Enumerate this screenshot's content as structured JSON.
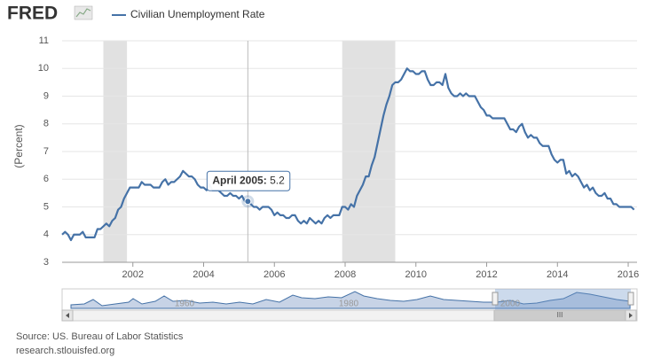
{
  "header": {
    "logo": "FRED"
  },
  "chart_data": {
    "type": "line",
    "y_label": "(Percent)",
    "x": [
      "2000-01",
      "2000-02",
      "2000-03",
      "2000-04",
      "2000-05",
      "2000-06",
      "2000-07",
      "2000-08",
      "2000-09",
      "2000-10",
      "2000-11",
      "2000-12",
      "2001-01",
      "2001-02",
      "2001-03",
      "2001-04",
      "2001-05",
      "2001-06",
      "2001-07",
      "2001-08",
      "2001-09",
      "2001-10",
      "2001-11",
      "2001-12",
      "2002-01",
      "2002-02",
      "2002-03",
      "2002-04",
      "2002-05",
      "2002-06",
      "2002-07",
      "2002-08",
      "2002-09",
      "2002-10",
      "2002-11",
      "2002-12",
      "2003-01",
      "2003-02",
      "2003-03",
      "2003-04",
      "2003-05",
      "2003-06",
      "2003-07",
      "2003-08",
      "2003-09",
      "2003-10",
      "2003-11",
      "2003-12",
      "2004-01",
      "2004-02",
      "2004-03",
      "2004-04",
      "2004-05",
      "2004-06",
      "2004-07",
      "2004-08",
      "2004-09",
      "2004-10",
      "2004-11",
      "2004-12",
      "2005-01",
      "2005-02",
      "2005-03",
      "2005-04",
      "2005-05",
      "2005-06",
      "2005-07",
      "2005-08",
      "2005-09",
      "2005-10",
      "2005-11",
      "2005-12",
      "2006-01",
      "2006-02",
      "2006-03",
      "2006-04",
      "2006-05",
      "2006-06",
      "2006-07",
      "2006-08",
      "2006-09",
      "2006-10",
      "2006-11",
      "2006-12",
      "2007-01",
      "2007-02",
      "2007-03",
      "2007-04",
      "2007-05",
      "2007-06",
      "2007-07",
      "2007-08",
      "2007-09",
      "2007-10",
      "2007-11",
      "2007-12",
      "2008-01",
      "2008-02",
      "2008-03",
      "2008-04",
      "2008-05",
      "2008-06",
      "2008-07",
      "2008-08",
      "2008-09",
      "2008-10",
      "2008-11",
      "2008-12",
      "2009-01",
      "2009-02",
      "2009-03",
      "2009-04",
      "2009-05",
      "2009-06",
      "2009-07",
      "2009-08",
      "2009-09",
      "2009-10",
      "2009-11",
      "2009-12",
      "2010-01",
      "2010-02",
      "2010-03",
      "2010-04",
      "2010-05",
      "2010-06",
      "2010-07",
      "2010-08",
      "2010-09",
      "2010-10",
      "2010-11",
      "2010-12",
      "2011-01",
      "2011-02",
      "2011-03",
      "2011-04",
      "2011-05",
      "2011-06",
      "2011-07",
      "2011-08",
      "2011-09",
      "2011-10",
      "2011-11",
      "2011-12",
      "2012-01",
      "2012-02",
      "2012-03",
      "2012-04",
      "2012-05",
      "2012-06",
      "2012-07",
      "2012-08",
      "2012-09",
      "2012-10",
      "2012-11",
      "2012-12",
      "2013-01",
      "2013-02",
      "2013-03",
      "2013-04",
      "2013-05",
      "2013-06",
      "2013-07",
      "2013-08",
      "2013-09",
      "2013-10",
      "2013-11",
      "2013-12",
      "2014-01",
      "2014-02",
      "2014-03",
      "2014-04",
      "2014-05",
      "2014-06",
      "2014-07",
      "2014-08",
      "2014-09",
      "2014-10",
      "2014-11",
      "2014-12",
      "2015-01",
      "2015-02",
      "2015-03",
      "2015-04",
      "2015-05",
      "2015-06",
      "2015-07",
      "2015-08",
      "2015-09",
      "2015-10",
      "2015-11",
      "2015-12",
      "2016-01",
      "2016-02",
      "2016-03"
    ],
    "series": [
      {
        "name": "Civilian Unemployment Rate",
        "color": "#4572a7",
        "values": [
          4.0,
          4.1,
          4.0,
          3.8,
          4.0,
          4.0,
          4.0,
          4.1,
          3.9,
          3.9,
          3.9,
          3.9,
          4.2,
          4.2,
          4.3,
          4.4,
          4.3,
          4.5,
          4.6,
          4.9,
          5.0,
          5.3,
          5.5,
          5.7,
          5.7,
          5.7,
          5.7,
          5.9,
          5.8,
          5.8,
          5.8,
          5.7,
          5.7,
          5.7,
          5.9,
          6.0,
          5.8,
          5.9,
          5.9,
          6.0,
          6.1,
          6.3,
          6.2,
          6.1,
          6.1,
          6.0,
          5.8,
          5.7,
          5.7,
          5.6,
          5.8,
          5.6,
          5.6,
          5.6,
          5.5,
          5.4,
          5.4,
          5.5,
          5.4,
          5.4,
          5.3,
          5.4,
          5.2,
          5.2,
          5.1,
          5.0,
          5.0,
          4.9,
          5.0,
          5.0,
          5.0,
          4.9,
          4.7,
          4.8,
          4.7,
          4.7,
          4.6,
          4.6,
          4.7,
          4.7,
          4.5,
          4.4,
          4.5,
          4.4,
          4.6,
          4.5,
          4.4,
          4.5,
          4.4,
          4.6,
          4.7,
          4.6,
          4.7,
          4.7,
          4.7,
          5.0,
          5.0,
          4.9,
          5.1,
          5.0,
          5.4,
          5.6,
          5.8,
          6.1,
          6.1,
          6.5,
          6.8,
          7.3,
          7.8,
          8.3,
          8.7,
          9.0,
          9.4,
          9.5,
          9.5,
          9.6,
          9.8,
          10.0,
          9.9,
          9.9,
          9.8,
          9.8,
          9.9,
          9.9,
          9.6,
          9.4,
          9.4,
          9.5,
          9.5,
          9.4,
          9.8,
          9.3,
          9.1,
          9.0,
          9.0,
          9.1,
          9.0,
          9.1,
          9.0,
          9.0,
          9.0,
          8.8,
          8.6,
          8.5,
          8.3,
          8.3,
          8.2,
          8.2,
          8.2,
          8.2,
          8.2,
          8.0,
          7.8,
          7.8,
          7.7,
          7.9,
          8.0,
          7.7,
          7.5,
          7.6,
          7.5,
          7.5,
          7.3,
          7.2,
          7.2,
          7.2,
          6.9,
          6.7,
          6.6,
          6.7,
          6.7,
          6.2,
          6.3,
          6.1,
          6.2,
          6.1,
          5.9,
          5.7,
          5.8,
          5.6,
          5.7,
          5.5,
          5.4,
          5.4,
          5.5,
          5.3,
          5.3,
          5.1,
          5.1,
          5.0,
          5.0,
          5.0,
          5.0,
          5.0,
          4.9
        ]
      }
    ],
    "xlim": [
      "2000-01",
      "2016-04"
    ],
    "xticks": [
      {
        "value": "2002-01",
        "label": "2002"
      },
      {
        "value": "2004-01",
        "label": "2004"
      },
      {
        "value": "2006-01",
        "label": "2006"
      },
      {
        "value": "2008-01",
        "label": "2008"
      },
      {
        "value": "2010-01",
        "label": "2010"
      },
      {
        "value": "2012-01",
        "label": "2012"
      },
      {
        "value": "2014-01",
        "label": "2014"
      },
      {
        "value": "2016-01",
        "label": "2016"
      }
    ],
    "ylim": [
      3,
      11
    ],
    "yticks": [
      3,
      4,
      5,
      6,
      7,
      8,
      9,
      10,
      11
    ],
    "grid": true,
    "recessions": [
      [
        "2001-03",
        "2001-11"
      ],
      [
        "2007-12",
        "2009-06"
      ]
    ],
    "tooltip": {
      "label": "April 2005",
      "value": 5.2,
      "x": "2005-04"
    }
  },
  "navigator": {
    "labels": [
      "1960",
      "1980",
      "2000"
    ],
    "scroll_label": "III"
  },
  "footer": {
    "source": "Source: US. Bureau of Labor Statistics",
    "site": "research.stlouisfed.org"
  }
}
